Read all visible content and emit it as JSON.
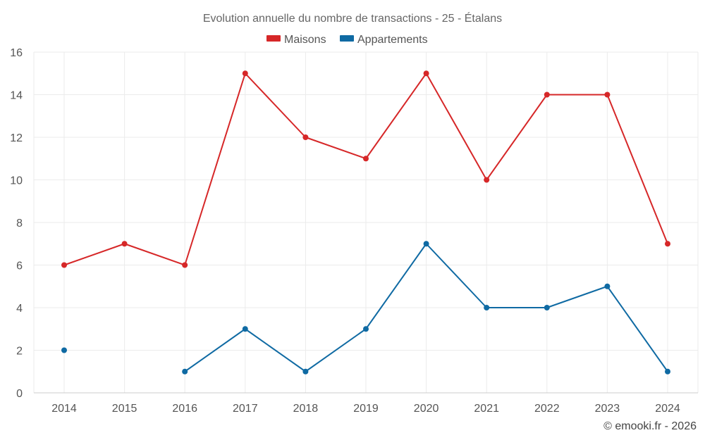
{
  "chart_data": {
    "type": "line",
    "title": "Evolution annuelle du nombre de transactions - 25 - Étalans",
    "categories": [
      "2014",
      "2015",
      "2016",
      "2017",
      "2018",
      "2019",
      "2020",
      "2021",
      "2022",
      "2023",
      "2024"
    ],
    "series": [
      {
        "name": "Maisons",
        "color": "#d62728",
        "values": [
          6,
          7,
          6,
          15,
          12,
          11,
          15,
          10,
          14,
          14,
          7
        ]
      },
      {
        "name": "Appartements",
        "color": "#0f6aa3",
        "values": [
          2,
          null,
          1,
          3,
          1,
          3,
          7,
          4,
          4,
          5,
          1
        ]
      }
    ],
    "ylim": [
      0,
      16
    ],
    "yticks": [
      0,
      2,
      4,
      6,
      8,
      10,
      12,
      14,
      16
    ],
    "xlabel": "",
    "ylabel": "",
    "grid": true,
    "legend_position": "top-center"
  },
  "credit": "© emooki.fr - 2026"
}
